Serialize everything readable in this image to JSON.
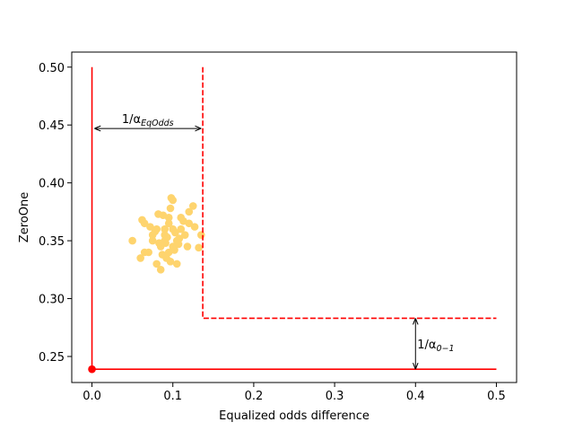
{
  "chart_data": {
    "type": "scatter",
    "xlabel": "Equalized odds difference",
    "ylabel": "ZeroOne",
    "xlim": [
      -0.025,
      0.525
    ],
    "ylim": [
      0.2275,
      0.513
    ],
    "xticks": [
      {
        "value": 0,
        "label": "0.0"
      },
      {
        "value": 0.1,
        "label": "0.1"
      },
      {
        "value": 0.2,
        "label": "0.2"
      },
      {
        "value": 0.3,
        "label": "0.3"
      },
      {
        "value": 0.4,
        "label": "0.4"
      },
      {
        "value": 0.5,
        "label": "0.5"
      }
    ],
    "yticks": [
      {
        "value": 0.25,
        "label": "0.25"
      },
      {
        "value": 0.3,
        "label": "0.30"
      },
      {
        "value": 0.35,
        "label": "0.35"
      },
      {
        "value": 0.4,
        "label": "0.40"
      },
      {
        "value": 0.45,
        "label": "0.45"
      },
      {
        "value": 0.5,
        "label": "0.50"
      }
    ],
    "series": [
      {
        "kind": "scatter",
        "color": "#fed46e",
        "x": [
          0.09,
          0.1,
          0.085,
          0.11,
          0.075,
          0.095,
          0.12,
          0.065,
          0.105,
          0.08,
          0.1,
          0.09,
          0.115,
          0.07,
          0.095,
          0.125,
          0.06,
          0.085,
          0.1,
          0.11,
          0.075,
          0.09,
          0.105,
          0.08,
          0.095,
          0.135,
          0.132,
          0.05,
          0.065,
          0.098,
          0.092,
          0.118,
          0.088,
          0.078,
          0.102,
          0.108,
          0.083,
          0.097,
          0.113,
          0.072,
          0.062,
          0.127,
          0.093,
          0.087,
          0.103,
          0.082,
          0.107,
          0.097,
          0.091,
          0.12
        ],
        "values": [
          0.355,
          0.36,
          0.345,
          0.37,
          0.35,
          0.34,
          0.375,
          0.365,
          0.35,
          0.33,
          0.385,
          0.36,
          0.355,
          0.34,
          0.37,
          0.38,
          0.335,
          0.325,
          0.345,
          0.36,
          0.355,
          0.35,
          0.33,
          0.36,
          0.365,
          0.355,
          0.344,
          0.35,
          0.34,
          0.387,
          0.335,
          0.345,
          0.372,
          0.358,
          0.342,
          0.352,
          0.348,
          0.378,
          0.367,
          0.362,
          0.368,
          0.362,
          0.353,
          0.338,
          0.357,
          0.373,
          0.347,
          0.332,
          0.348,
          0.365
        ]
      },
      {
        "kind": "line",
        "color": "#ff0000",
        "dashed": false,
        "x": [
          0,
          0,
          0.5
        ],
        "values": [
          0.5,
          0.239,
          0.239
        ]
      },
      {
        "kind": "line",
        "color": "#ff0000",
        "dashed": true,
        "x": [
          0.137,
          0.137,
          0.5
        ],
        "values": [
          0.5,
          0.283,
          0.283
        ]
      },
      {
        "kind": "scatter",
        "color": "#ff0000",
        "x": [
          0
        ],
        "values": [
          0.239
        ]
      }
    ],
    "annotations": [
      {
        "text": "1/α",
        "sub": "EqOdds",
        "from": [
          0.003,
          0.447
        ],
        "to": [
          0.135,
          0.447
        ]
      },
      {
        "text": "1/α",
        "sub": "0−1",
        "from": [
          0.4,
          0.283
        ],
        "to": [
          0.4,
          0.239
        ]
      }
    ]
  }
}
